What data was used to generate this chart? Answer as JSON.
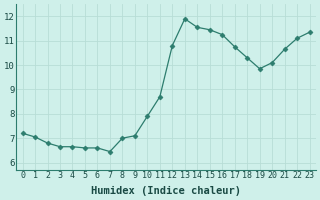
{
  "x": [
    0,
    1,
    2,
    3,
    4,
    5,
    6,
    7,
    8,
    9,
    10,
    11,
    12,
    13,
    14,
    15,
    16,
    17,
    18,
    19,
    20,
    21,
    22,
    23
  ],
  "y": [
    7.2,
    7.05,
    6.8,
    6.65,
    6.65,
    6.6,
    6.6,
    6.45,
    7.0,
    7.1,
    7.9,
    8.7,
    10.8,
    11.9,
    11.55,
    11.45,
    11.25,
    10.75,
    10.3,
    9.85,
    10.1,
    10.65,
    11.1,
    11.35
  ],
  "line_color": "#2d7d6e",
  "marker": "D",
  "marker_size": 2.5,
  "bg_plot": "#cff0ea",
  "bg_fig": "#cff0ea",
  "grid_color": "#b8ddd6",
  "xlabel": "Humidex (Indice chaleur)",
  "xlabel_fontsize": 7.5,
  "xtick_fontsize": 6,
  "ytick_fontsize": 6.5,
  "xlim": [
    -0.5,
    23.5
  ],
  "ylim": [
    5.7,
    12.5
  ],
  "yticks": [
    6,
    7,
    8,
    9,
    10,
    11,
    12
  ],
  "xticks": [
    0,
    1,
    2,
    3,
    4,
    5,
    6,
    7,
    8,
    9,
    10,
    11,
    12,
    13,
    14,
    15,
    16,
    17,
    18,
    19,
    20,
    21,
    22,
    23
  ],
  "spine_color": "#2d7d6e",
  "tick_color": "#2d7d6e",
  "label_color": "#1a4a44"
}
